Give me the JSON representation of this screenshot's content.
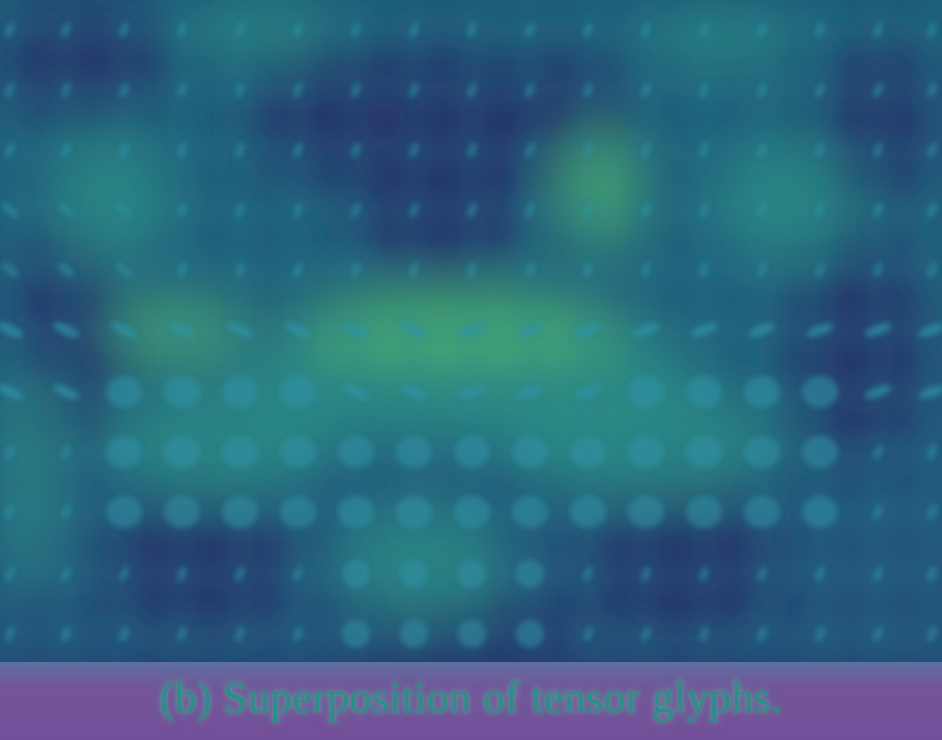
{
  "caption": "(b) Superposition of tensor glyphs.",
  "colors": {
    "field_dark": "#27306a",
    "field_mid": "#1f5a78",
    "field_teal": "#2a8f86",
    "field_green": "#4fb66e",
    "glyph": "#2f93a8",
    "band": "#74509a",
    "border": "#3aa7a0"
  }
}
